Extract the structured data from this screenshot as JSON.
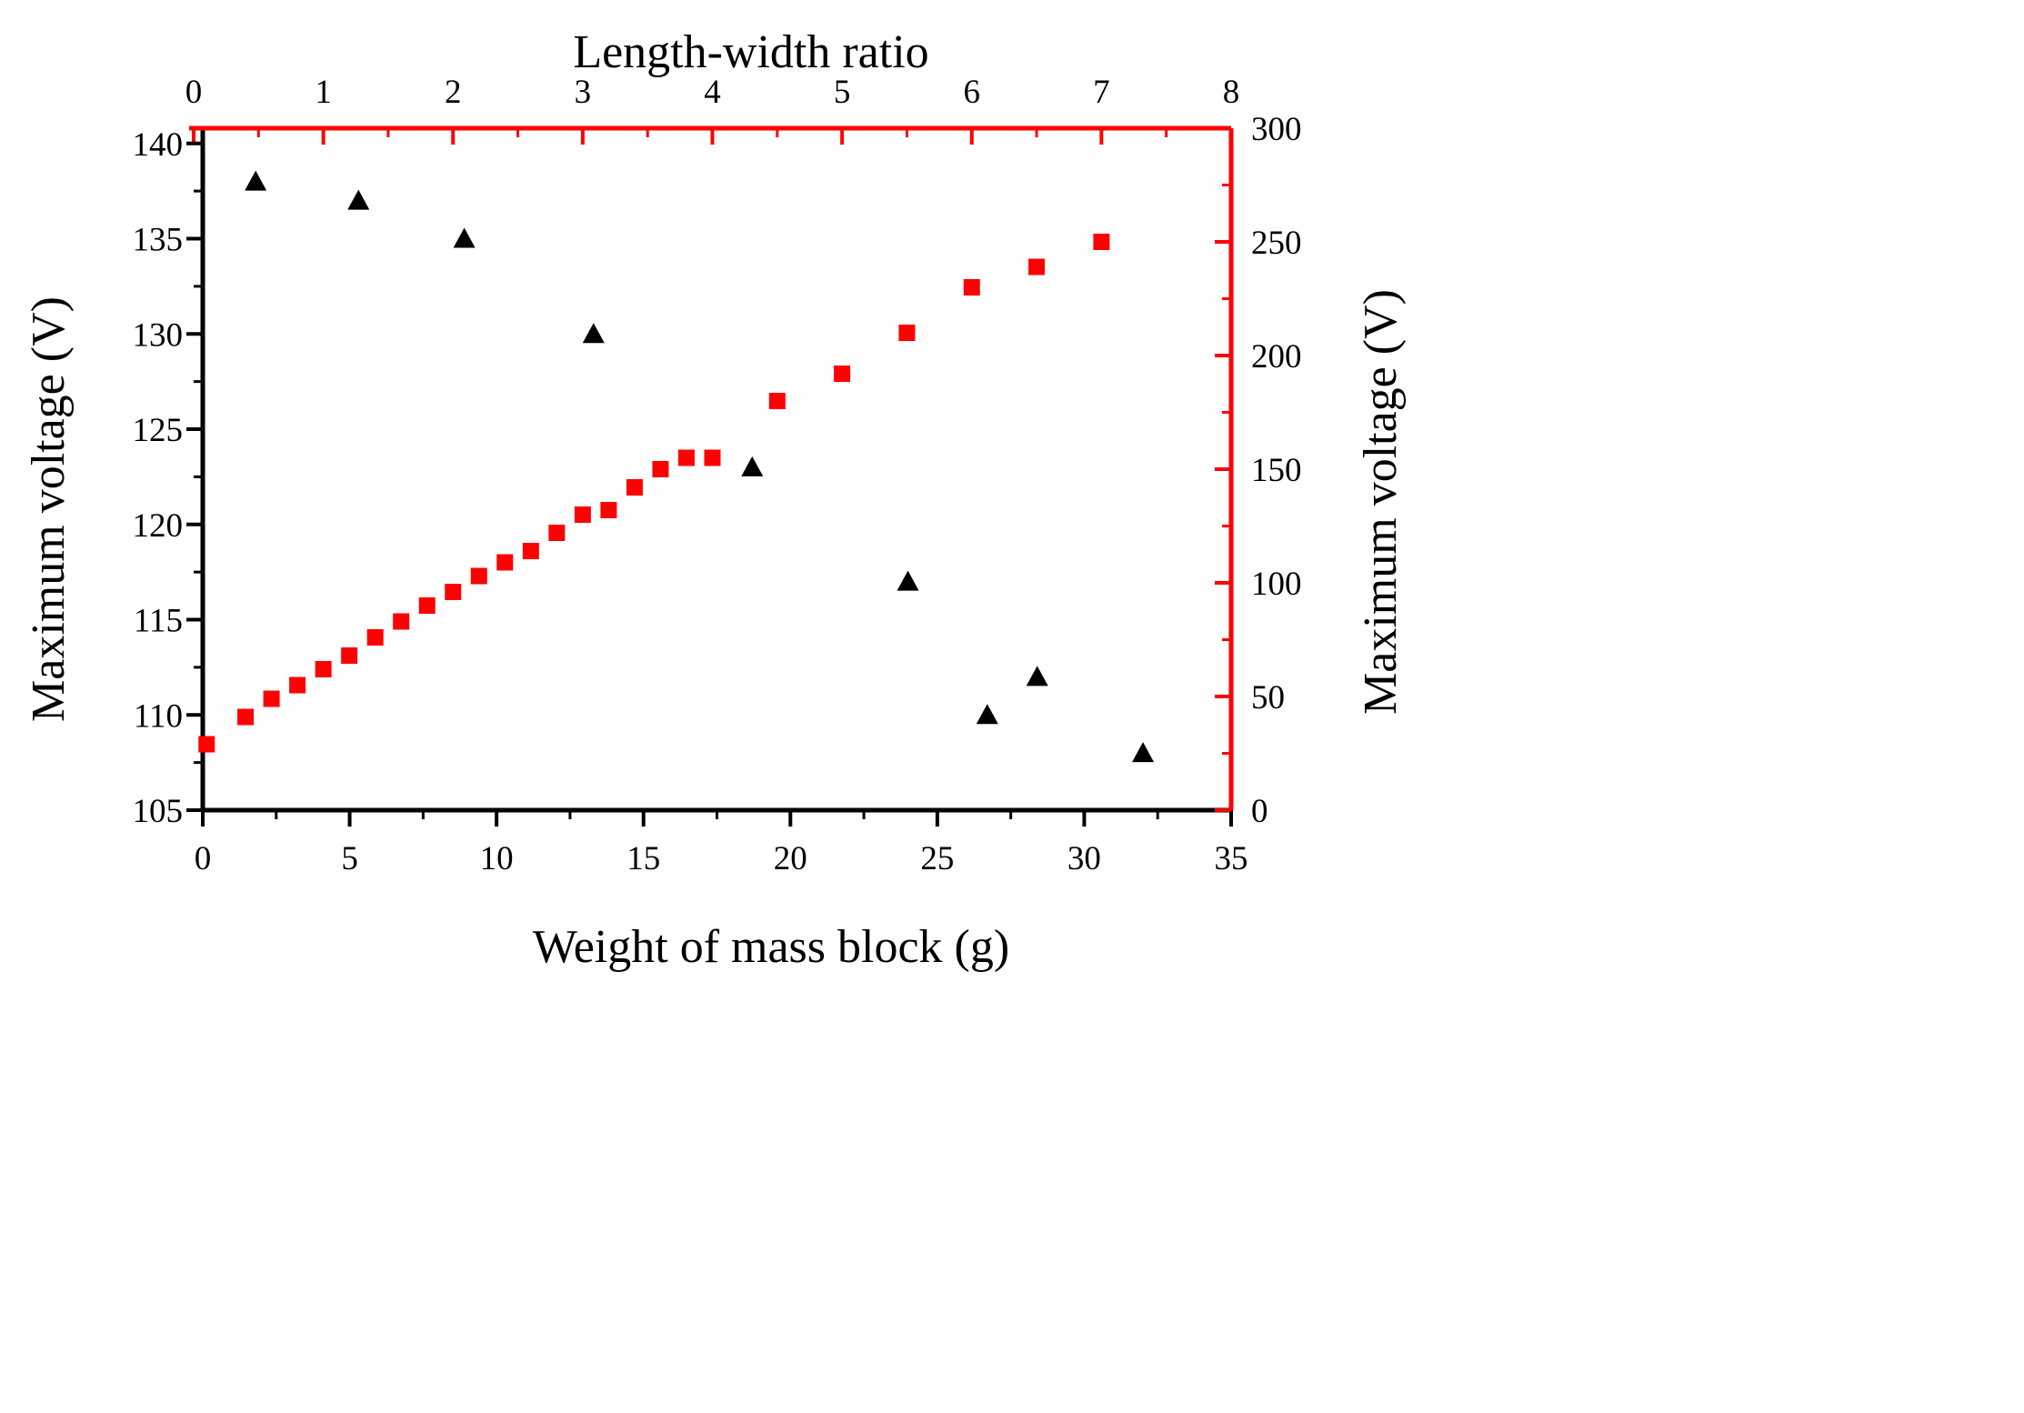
{
  "chart_data": {
    "type": "scatter",
    "bottom_axis": {
      "label": "Weight of mass block (g)",
      "range": [
        0,
        35
      ],
      "ticks": [
        0,
        5,
        10,
        15,
        20,
        25,
        30,
        35
      ],
      "color": "#000000"
    },
    "top_axis": {
      "label": "Length-width ratio",
      "range": [
        0,
        8
      ],
      "ticks": [
        0,
        1,
        2,
        3,
        4,
        5,
        6,
        7,
        8
      ],
      "color": "#ff0000"
    },
    "left_axis": {
      "label": "Maximum voltage (V)",
      "range": [
        105,
        140.8
      ],
      "ticks": [
        105,
        110,
        115,
        120,
        125,
        130,
        135,
        140
      ],
      "color": "#000000"
    },
    "right_axis": {
      "label": "Maximum voltage (V)",
      "range": [
        0,
        300
      ],
      "ticks": [
        0,
        50,
        100,
        150,
        200,
        250,
        300
      ],
      "color": "#ff0000"
    },
    "series": [
      {
        "marker": "triangle",
        "color": "#000000",
        "x_axis": "bottom",
        "y_axis": "left",
        "x": [
          1.8,
          5.3,
          8.9,
          13.3,
          18.7,
          24.0,
          26.7,
          28.4,
          32.0
        ],
        "y": [
          138,
          137,
          135,
          130,
          123,
          117,
          110,
          112,
          108
        ]
      },
      {
        "marker": "square",
        "color": "#ff0000",
        "x_axis": "top",
        "y_axis": "right",
        "x": [
          0.1,
          0.4,
          0.6,
          0.8,
          1.0,
          1.2,
          1.4,
          1.6,
          1.8,
          2.0,
          2.2,
          2.4,
          2.6,
          2.8,
          3.0,
          3.2,
          3.4,
          3.6,
          3.8,
          4.0,
          4.5,
          5.0,
          5.5,
          6.0,
          6.5,
          7.0
        ],
        "y": [
          29,
          41,
          49,
          55,
          62,
          68,
          76,
          83,
          90,
          96,
          103,
          109,
          114,
          122,
          130,
          132,
          142,
          150,
          155,
          155,
          180,
          192,
          210,
          230,
          239,
          250
        ]
      }
    ]
  }
}
